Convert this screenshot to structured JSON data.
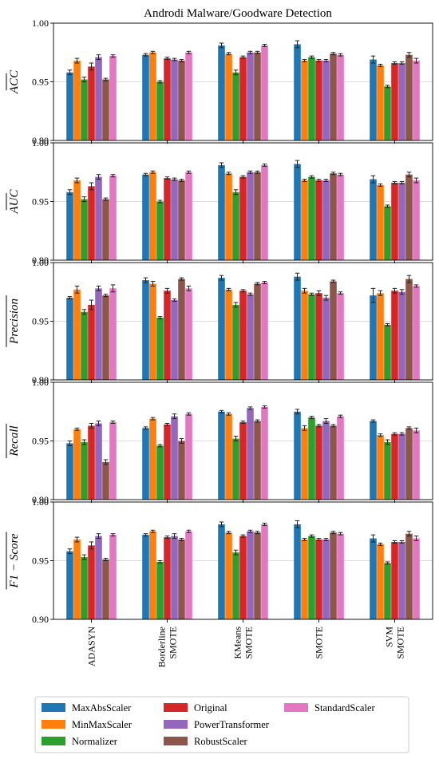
{
  "chart_data": {
    "type": "bar",
    "title": "Androdi Malware/Goodware Detection",
    "categories": [
      "ADASYN",
      "Borderline\nSMOTE",
      "KMeans\nSMOTE",
      "SMOTE",
      "SVM\nSMOTE"
    ],
    "legend": {
      "placement": "bottom",
      "columns": 3,
      "entries": [
        "MaxAbsScaler",
        "MinMaxScaler",
        "Normalizer",
        "Original",
        "PowerTransformer",
        "RobustScaler",
        "StandardScaler"
      ]
    },
    "colors": [
      "#1f77b4",
      "#ff7f0e",
      "#2ca02c",
      "#d62728",
      "#9467bd",
      "#8c564b",
      "#e377c2"
    ],
    "ylim": [
      0.9,
      1.0
    ],
    "yticks": [
      "0.90",
      "0.95",
      "1.00"
    ],
    "grid": true,
    "panels": [
      {
        "ylabel": "ACC",
        "series": [
          {
            "values": [
              0.958,
              0.973,
              0.981,
              0.982,
              0.969
            ],
            "errors": [
              0.002,
              0.001,
              0.002,
              0.003,
              0.003
            ]
          },
          {
            "values": [
              0.968,
              0.975,
              0.974,
              0.968,
              0.964
            ],
            "errors": [
              0.002,
              0.001,
              0.001,
              0.001,
              0.001
            ]
          },
          {
            "values": [
              0.952,
              0.95,
              0.958,
              0.971,
              0.946
            ],
            "errors": [
              0.002,
              0.001,
              0.002,
              0.001,
              0.001
            ]
          },
          {
            "values": [
              0.963,
              0.97,
              0.971,
              0.968,
              0.966
            ],
            "errors": [
              0.003,
              0.001,
              0.001,
              0.001,
              0.001
            ]
          },
          {
            "values": [
              0.971,
              0.969,
              0.975,
              0.968,
              0.966
            ],
            "errors": [
              0.002,
              0.001,
              0.001,
              0.001,
              0.001
            ]
          },
          {
            "values": [
              0.952,
              0.968,
              0.975,
              0.974,
              0.973
            ],
            "errors": [
              0.001,
              0.001,
              0.001,
              0.001,
              0.002
            ]
          },
          {
            "values": [
              0.972,
              0.975,
              0.981,
              0.973,
              0.968
            ],
            "errors": [
              0.001,
              0.001,
              0.001,
              0.001,
              0.002
            ]
          }
        ]
      },
      {
        "ylabel": "AUC",
        "series": [
          {
            "values": [
              0.958,
              0.973,
              0.981,
              0.982,
              0.969
            ],
            "errors": [
              0.002,
              0.001,
              0.002,
              0.003,
              0.003
            ]
          },
          {
            "values": [
              0.968,
              0.975,
              0.974,
              0.968,
              0.964
            ],
            "errors": [
              0.002,
              0.001,
              0.001,
              0.001,
              0.001
            ]
          },
          {
            "values": [
              0.952,
              0.95,
              0.958,
              0.971,
              0.946
            ],
            "errors": [
              0.002,
              0.001,
              0.002,
              0.001,
              0.001
            ]
          },
          {
            "values": [
              0.963,
              0.97,
              0.971,
              0.968,
              0.966
            ],
            "errors": [
              0.003,
              0.001,
              0.001,
              0.001,
              0.001
            ]
          },
          {
            "values": [
              0.971,
              0.969,
              0.975,
              0.968,
              0.966
            ],
            "errors": [
              0.002,
              0.001,
              0.001,
              0.001,
              0.001
            ]
          },
          {
            "values": [
              0.952,
              0.968,
              0.975,
              0.974,
              0.973
            ],
            "errors": [
              0.001,
              0.001,
              0.001,
              0.001,
              0.002
            ]
          },
          {
            "values": [
              0.972,
              0.975,
              0.981,
              0.973,
              0.968
            ],
            "errors": [
              0.001,
              0.001,
              0.001,
              0.001,
              0.002
            ]
          }
        ]
      },
      {
        "ylabel": "Precision",
        "series": [
          {
            "values": [
              0.97,
              0.985,
              0.987,
              0.988,
              0.972
            ],
            "errors": [
              0.001,
              0.002,
              0.002,
              0.003,
              0.006
            ]
          },
          {
            "values": [
              0.977,
              0.982,
              0.977,
              0.976,
              0.974
            ],
            "errors": [
              0.003,
              0.002,
              0.001,
              0.002,
              0.002
            ]
          },
          {
            "values": [
              0.958,
              0.953,
              0.964,
              0.973,
              0.947
            ],
            "errors": [
              0.002,
              0.001,
              0.002,
              0.001,
              0.001
            ]
          },
          {
            "values": [
              0.964,
              0.976,
              0.976,
              0.974,
              0.976
            ],
            "errors": [
              0.004,
              0.002,
              0.001,
              0.002,
              0.002
            ]
          },
          {
            "values": [
              0.978,
              0.968,
              0.973,
              0.97,
              0.975
            ],
            "errors": [
              0.002,
              0.001,
              0.001,
              0.002,
              0.002
            ]
          },
          {
            "values": [
              0.972,
              0.986,
              0.982,
              0.984,
              0.986
            ],
            "errors": [
              0.001,
              0.001,
              0.001,
              0.001,
              0.003
            ]
          },
          {
            "values": [
              0.978,
              0.978,
              0.983,
              0.974,
              0.98
            ],
            "errors": [
              0.003,
              0.002,
              0.001,
              0.001,
              0.001
            ]
          }
        ]
      },
      {
        "ylabel": "Recall",
        "series": [
          {
            "values": [
              0.948,
              0.961,
              0.975,
              0.975,
              0.967
            ],
            "errors": [
              0.002,
              0.001,
              0.001,
              0.002,
              0.001
            ]
          },
          {
            "values": [
              0.96,
              0.969,
              0.973,
              0.961,
              0.955
            ],
            "errors": [
              0.001,
              0.001,
              0.001,
              0.002,
              0.001
            ]
          },
          {
            "values": [
              0.949,
              0.946,
              0.952,
              0.97,
              0.949
            ],
            "errors": [
              0.002,
              0.001,
              0.002,
              0.001,
              0.002
            ]
          },
          {
            "values": [
              0.963,
              0.964,
              0.966,
              0.963,
              0.956
            ],
            "errors": [
              0.002,
              0.001,
              0.001,
              0.001,
              0.001
            ]
          },
          {
            "values": [
              0.965,
              0.971,
              0.978,
              0.967,
              0.956
            ],
            "errors": [
              0.002,
              0.002,
              0.001,
              0.002,
              0.001
            ]
          },
          {
            "values": [
              0.932,
              0.95,
              0.967,
              0.963,
              0.961
            ],
            "errors": [
              0.002,
              0.002,
              0.001,
              0.001,
              0.001
            ]
          },
          {
            "values": [
              0.966,
              0.973,
              0.979,
              0.971,
              0.959
            ],
            "errors": [
              0.001,
              0.001,
              0.001,
              0.001,
              0.002
            ]
          }
        ]
      },
      {
        "ylabel": "F1 − Score",
        "series": [
          {
            "values": [
              0.958,
              0.972,
              0.981,
              0.981,
              0.969
            ],
            "errors": [
              0.002,
              0.001,
              0.002,
              0.003,
              0.003
            ]
          },
          {
            "values": [
              0.968,
              0.975,
              0.974,
              0.968,
              0.964
            ],
            "errors": [
              0.002,
              0.001,
              0.001,
              0.001,
              0.001
            ]
          },
          {
            "values": [
              0.953,
              0.949,
              0.957,
              0.971,
              0.948
            ],
            "errors": [
              0.002,
              0.001,
              0.002,
              0.001,
              0.001
            ]
          },
          {
            "values": [
              0.963,
              0.97,
              0.971,
              0.968,
              0.966
            ],
            "errors": [
              0.003,
              0.001,
              0.001,
              0.001,
              0.001
            ]
          },
          {
            "values": [
              0.971,
              0.971,
              0.975,
              0.968,
              0.966
            ],
            "errors": [
              0.002,
              0.002,
              0.001,
              0.001,
              0.001
            ]
          },
          {
            "values": [
              0.951,
              0.968,
              0.974,
              0.974,
              0.973
            ],
            "errors": [
              0.001,
              0.001,
              0.001,
              0.001,
              0.002
            ]
          },
          {
            "values": [
              0.972,
              0.975,
              0.981,
              0.973,
              0.969
            ],
            "errors": [
              0.001,
              0.001,
              0.001,
              0.001,
              0.002
            ]
          }
        ]
      }
    ]
  }
}
